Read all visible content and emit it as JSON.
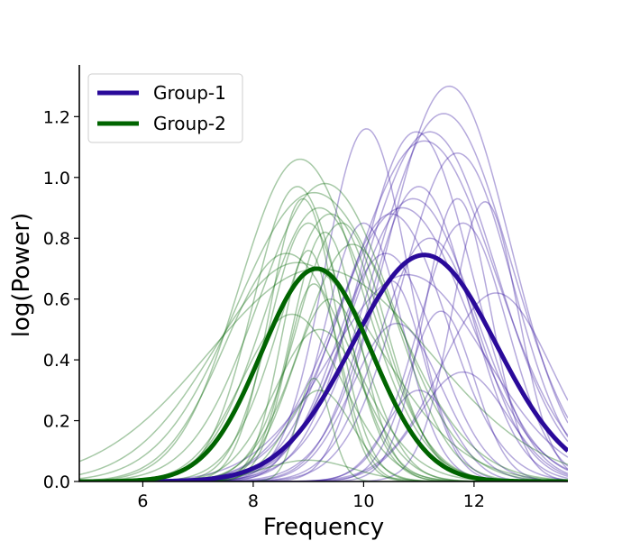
{
  "chart_data": {
    "type": "line",
    "title": "",
    "xlabel": "Frequency",
    "ylabel": "log(Power)",
    "xlim": [
      4.85,
      13.7
    ],
    "ylim": [
      0,
      1.37
    ],
    "xticks": [
      6,
      8,
      10,
      12
    ],
    "yticks": [
      0.0,
      0.2,
      0.4,
      0.6,
      0.8,
      1.0,
      1.2
    ],
    "xtick_labels": [
      "6",
      "8",
      "10",
      "12"
    ],
    "ytick_labels": [
      "0.0",
      "0.2",
      "0.4",
      "0.6",
      "0.8",
      "1.0",
      "1.2"
    ],
    "curve_model": "gaussian: amp * exp(-(x - center)^2 / (2 * width^2))",
    "legend": {
      "location": "upper left",
      "entries": [
        {
          "label": "Group-1",
          "color": "#2a0a9a"
        },
        {
          "label": "Group-2",
          "color": "#006400"
        }
      ]
    },
    "series": [
      {
        "name": "Group-1",
        "color": "#2a0a9a",
        "mean": {
          "amp": 0.745,
          "center": 11.1,
          "width": 1.3
        },
        "individual": [
          {
            "amp": 1.3,
            "center": 11.55,
            "width": 1.1
          },
          {
            "amp": 1.21,
            "center": 11.45,
            "width": 1.2
          },
          {
            "amp": 1.16,
            "center": 10.05,
            "width": 0.75
          },
          {
            "amp": 1.15,
            "center": 10.95,
            "width": 1.0
          },
          {
            "amp": 1.15,
            "center": 11.2,
            "width": 1.2
          },
          {
            "amp": 1.12,
            "center": 11.1,
            "width": 1.3
          },
          {
            "amp": 1.08,
            "center": 11.7,
            "width": 1.0
          },
          {
            "amp": 0.97,
            "center": 11.0,
            "width": 0.9
          },
          {
            "amp": 0.93,
            "center": 10.9,
            "width": 1.1
          },
          {
            "amp": 0.93,
            "center": 11.7,
            "width": 0.6
          },
          {
            "amp": 0.92,
            "center": 12.2,
            "width": 0.6
          },
          {
            "amp": 0.9,
            "center": 10.7,
            "width": 1.2
          },
          {
            "amp": 0.88,
            "center": 10.5,
            "width": 1.0
          },
          {
            "amp": 0.85,
            "center": 10.0,
            "width": 0.7
          },
          {
            "amp": 0.85,
            "center": 11.8,
            "width": 0.8
          },
          {
            "amp": 0.8,
            "center": 11.2,
            "width": 0.9
          },
          {
            "amp": 0.75,
            "center": 10.4,
            "width": 0.9
          },
          {
            "amp": 0.68,
            "center": 10.8,
            "width": 1.4
          },
          {
            "amp": 0.66,
            "center": 10.5,
            "width": 0.6
          },
          {
            "amp": 0.62,
            "center": 12.4,
            "width": 1.0
          },
          {
            "amp": 0.56,
            "center": 11.4,
            "width": 0.6
          },
          {
            "amp": 0.52,
            "center": 10.6,
            "width": 0.8
          },
          {
            "amp": 0.36,
            "center": 11.8,
            "width": 0.8
          },
          {
            "amp": 0.3,
            "center": 11.0,
            "width": 0.6
          }
        ]
      },
      {
        "name": "Group-2",
        "color": "#006400",
        "mean": {
          "amp": 0.7,
          "center": 9.15,
          "width": 1.0
        },
        "individual": [
          {
            "amp": 1.06,
            "center": 8.85,
            "width": 1.1
          },
          {
            "amp": 0.98,
            "center": 9.3,
            "width": 1.2
          },
          {
            "amp": 0.97,
            "center": 8.8,
            "width": 0.8
          },
          {
            "amp": 0.95,
            "center": 9.1,
            "width": 1.4
          },
          {
            "amp": 0.93,
            "center": 8.9,
            "width": 0.6
          },
          {
            "amp": 0.9,
            "center": 9.2,
            "width": 1.0
          },
          {
            "amp": 0.88,
            "center": 9.4,
            "width": 0.9
          },
          {
            "amp": 0.85,
            "center": 9.0,
            "width": 0.7
          },
          {
            "amp": 0.85,
            "center": 9.6,
            "width": 0.8
          },
          {
            "amp": 0.82,
            "center": 9.3,
            "width": 0.6
          },
          {
            "amp": 0.78,
            "center": 9.8,
            "width": 0.9
          },
          {
            "amp": 0.76,
            "center": 9.0,
            "width": 0.5
          },
          {
            "amp": 0.75,
            "center": 8.6,
            "width": 1.1
          },
          {
            "amp": 0.72,
            "center": 8.8,
            "width": 1.5
          },
          {
            "amp": 0.7,
            "center": 9.2,
            "width": 2.0
          },
          {
            "amp": 0.65,
            "center": 9.1,
            "width": 0.5
          },
          {
            "amp": 0.6,
            "center": 9.4,
            "width": 0.7
          },
          {
            "amp": 0.55,
            "center": 8.7,
            "width": 0.9
          },
          {
            "amp": 0.5,
            "center": 9.2,
            "width": 0.8
          },
          {
            "amp": 0.34,
            "center": 9.1,
            "width": 0.3
          },
          {
            "amp": 0.3,
            "center": 9.2,
            "width": 0.6
          },
          {
            "amp": 0.07,
            "center": 9.0,
            "width": 0.8
          }
        ]
      }
    ]
  }
}
